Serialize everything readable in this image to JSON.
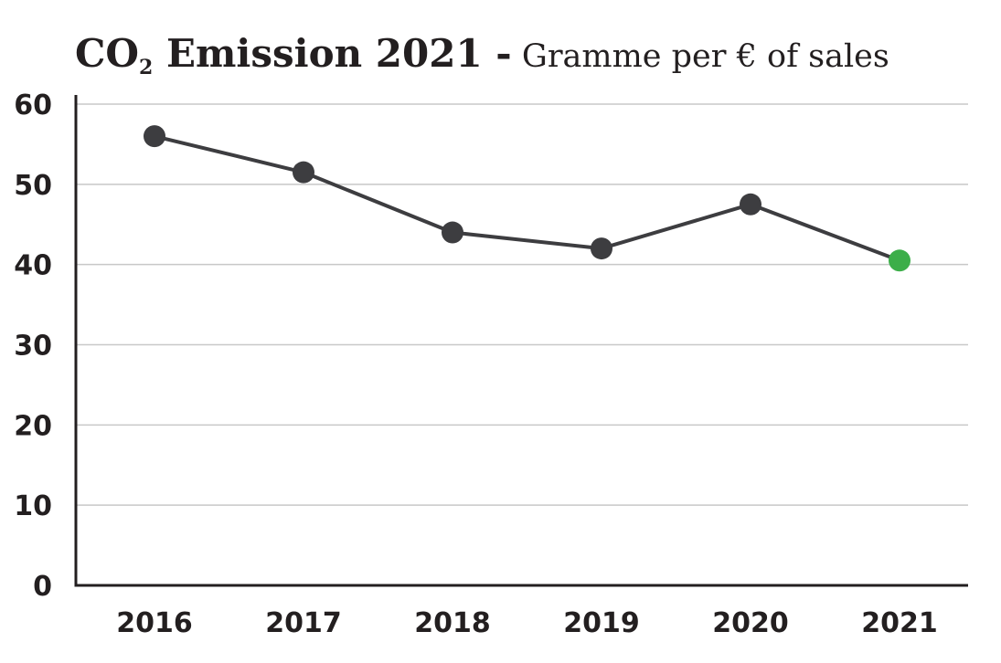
{
  "title": {
    "bold_prefix": "CO",
    "subscript": "2",
    "bold_main": " Emission 2021 -",
    "light_suffix": " Gramme per € of sales"
  },
  "colors": {
    "line": "#3d3d40",
    "marker": "#3d3d40",
    "highlight_marker": "#3cae49",
    "grid": "#c8c8c8",
    "axis": "#231f20"
  },
  "chart_data": {
    "type": "line",
    "categories": [
      "2016",
      "2017",
      "2018",
      "2019",
      "2020",
      "2021"
    ],
    "values": [
      56,
      51.5,
      44,
      42,
      47.5,
      40.5
    ],
    "highlight_index": 5,
    "ylim": [
      0,
      60
    ],
    "yticks": [
      0,
      10,
      20,
      30,
      40,
      50,
      60
    ],
    "grid": true,
    "legend": "none",
    "xlabel": "",
    "ylabel": ""
  }
}
